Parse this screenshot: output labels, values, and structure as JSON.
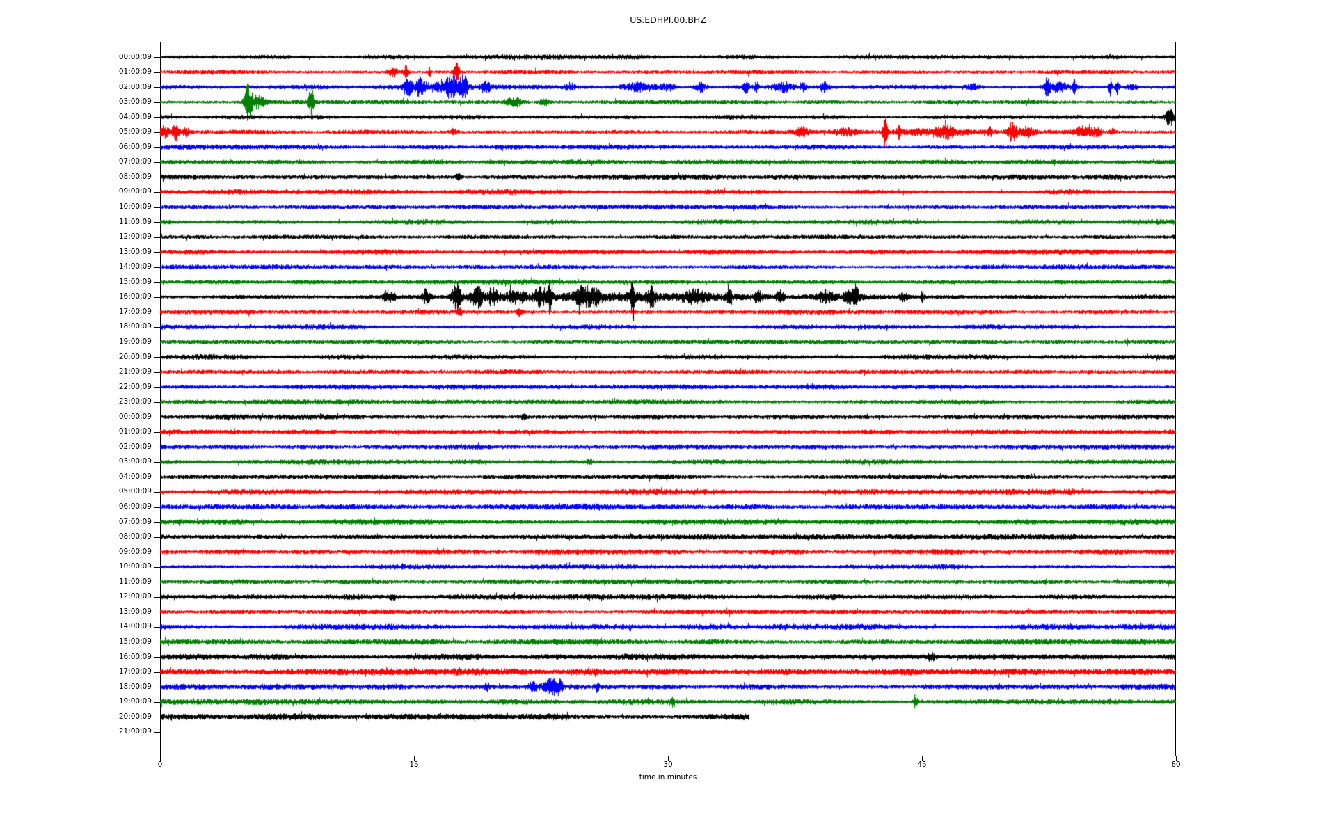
{
  "chart_data": {
    "type": "line",
    "subtype": "seismogram-helicorder-dayplot",
    "title": "US.EDHPI.00.BHZ",
    "xlabel": "time in minutes",
    "xlim": [
      0,
      60
    ],
    "x_ticks": [
      0,
      15,
      30,
      45,
      60
    ],
    "grid_minutes": [
      15,
      30,
      45
    ],
    "grid_on": true,
    "grid_color": "#9a9a9a",
    "color_cycle": [
      "#000000",
      "#ff0000",
      "#0000ff",
      "#008000"
    ],
    "row_unit": "one hour per row, amplitudes in relative pixels",
    "rows": [
      {
        "label": "00:00:09",
        "noise": 3.0,
        "events": []
      },
      {
        "label": "01:00:09",
        "noise": 2.8,
        "events": [
          [
            13.7,
            7,
            0.3
          ],
          [
            14.5,
            9,
            0.15
          ],
          [
            15.9,
            5,
            0.1
          ],
          [
            17.5,
            13,
            0.18
          ]
        ]
      },
      {
        "label": "02:00:09",
        "noise": 2.9,
        "events": [
          [
            14.6,
            15,
            0.2
          ],
          [
            15.3,
            11,
            0.3
          ],
          [
            16.5,
            5,
            1.2
          ],
          [
            17.2,
            13,
            0.35
          ],
          [
            17.9,
            15,
            0.25
          ],
          [
            19.2,
            9,
            0.25
          ],
          [
            24.2,
            5,
            0.25
          ],
          [
            28.3,
            6,
            1.0
          ],
          [
            30.0,
            5,
            0.4
          ],
          [
            31.9,
            7,
            0.3
          ],
          [
            34.6,
            8,
            0.15
          ],
          [
            35.2,
            6,
            0.12
          ],
          [
            36.8,
            7,
            0.6
          ],
          [
            38.0,
            6,
            0.15
          ],
          [
            39.2,
            7,
            0.25
          ],
          [
            48.0,
            4,
            0.4
          ],
          [
            52.4,
            13,
            0.15
          ],
          [
            53.0,
            6,
            0.7
          ],
          [
            54.0,
            11,
            0.12
          ],
          [
            56.1,
            13,
            0.1
          ],
          [
            56.5,
            12,
            0.1
          ],
          [
            57.4,
            5,
            0.3
          ]
        ]
      },
      {
        "label": "03:00:09",
        "noise": 2.9,
        "events": [
          [
            5.2,
            25,
            0.22
          ],
          [
            5.7,
            8,
            0.5
          ],
          [
            8.9,
            19,
            0.18
          ],
          [
            20.9,
            6,
            0.5
          ],
          [
            22.7,
            5,
            0.3
          ]
        ]
      },
      {
        "label": "04:00:09",
        "noise": 2.8,
        "events": [
          [
            59.6,
            13,
            0.25
          ]
        ]
      },
      {
        "label": "05:00:09",
        "noise": 2.9,
        "events": [
          [
            0.2,
            8,
            0.3
          ],
          [
            0.9,
            11,
            0.2
          ],
          [
            1.5,
            6,
            0.2
          ],
          [
            17.3,
            4,
            0.2
          ],
          [
            37.9,
            7,
            0.35
          ],
          [
            40.5,
            5,
            0.7
          ],
          [
            42.8,
            22,
            0.12
          ],
          [
            43.6,
            8,
            0.12
          ],
          [
            45.5,
            3,
            3.0
          ],
          [
            46.4,
            6,
            0.5
          ],
          [
            49.0,
            9,
            0.1
          ],
          [
            50.3,
            12,
            0.25
          ],
          [
            51.1,
            6,
            0.5
          ],
          [
            54.5,
            7,
            0.5
          ],
          [
            55.3,
            6,
            0.3
          ],
          [
            56.2,
            4,
            0.2
          ]
        ]
      },
      {
        "label": "06:00:09",
        "noise": 2.9,
        "events": []
      },
      {
        "label": "07:00:09",
        "noise": 3.0,
        "events": []
      },
      {
        "label": "08:00:09",
        "noise": 3.2,
        "events": [
          [
            17.6,
            5,
            0.15
          ]
        ]
      },
      {
        "label": "09:00:09",
        "noise": 3.3,
        "events": []
      },
      {
        "label": "10:00:09",
        "noise": 3.2,
        "events": []
      },
      {
        "label": "11:00:09",
        "noise": 3.2,
        "events": []
      },
      {
        "label": "12:00:09",
        "noise": 2.9,
        "events": []
      },
      {
        "label": "13:00:09",
        "noise": 3.0,
        "events": []
      },
      {
        "label": "14:00:09",
        "noise": 3.0,
        "events": []
      },
      {
        "label": "15:00:09",
        "noise": 3.1,
        "events": []
      },
      {
        "label": "16:00:09",
        "noise": 3.0,
        "events": [
          [
            27.5,
            3.5,
            9.0
          ],
          [
            13.5,
            10,
            0.3
          ],
          [
            15.7,
            11,
            0.25
          ],
          [
            17.5,
            20,
            0.25
          ],
          [
            18.7,
            14,
            0.35
          ],
          [
            19.6,
            10,
            0.35
          ],
          [
            21.0,
            7,
            0.7
          ],
          [
            22.5,
            11,
            0.4
          ],
          [
            23.0,
            18,
            0.13
          ],
          [
            24.9,
            11,
            0.5
          ],
          [
            25.6,
            9,
            0.35
          ],
          [
            27.9,
            36,
            0.1
          ],
          [
            29.0,
            13,
            0.25
          ],
          [
            31.5,
            7,
            0.7
          ],
          [
            33.6,
            20,
            0.13
          ],
          [
            35.3,
            11,
            0.18
          ],
          [
            36.6,
            9,
            0.2
          ],
          [
            39.3,
            7,
            0.45
          ],
          [
            40.8,
            8,
            0.5
          ],
          [
            41.1,
            12,
            0.13
          ],
          [
            43.9,
            5,
            0.25
          ],
          [
            45.0,
            8,
            0.1
          ]
        ]
      },
      {
        "label": "17:00:09",
        "noise": 3.0,
        "events": [
          [
            17.7,
            8,
            0.1
          ],
          [
            21.2,
            5,
            0.15
          ]
        ]
      },
      {
        "label": "18:00:09",
        "noise": 3.1,
        "events": []
      },
      {
        "label": "19:00:09",
        "noise": 3.0,
        "events": []
      },
      {
        "label": "20:00:09",
        "noise": 3.4,
        "events": []
      },
      {
        "label": "21:00:09",
        "noise": 3.0,
        "events": []
      },
      {
        "label": "22:00:09",
        "noise": 3.0,
        "events": []
      },
      {
        "label": "23:00:09",
        "noise": 3.0,
        "events": []
      },
      {
        "label": "00:00:09",
        "noise": 3.1,
        "events": [
          [
            21.5,
            7,
            0.12
          ]
        ]
      },
      {
        "label": "01:00:09",
        "noise": 3.0,
        "events": []
      },
      {
        "label": "02:00:09",
        "noise": 3.2,
        "events": []
      },
      {
        "label": "03:00:09",
        "noise": 3.3,
        "events": [
          [
            25.3,
            4,
            0.2
          ]
        ]
      },
      {
        "label": "04:00:09",
        "noise": 3.2,
        "events": []
      },
      {
        "label": "05:00:09",
        "noise": 3.3,
        "events": []
      },
      {
        "label": "06:00:09",
        "noise": 3.5,
        "events": []
      },
      {
        "label": "07:00:09",
        "noise": 3.3,
        "events": []
      },
      {
        "label": "08:00:09",
        "noise": 3.4,
        "events": []
      },
      {
        "label": "09:00:09",
        "noise": 3.3,
        "events": []
      },
      {
        "label": "10:00:09",
        "noise": 3.3,
        "events": []
      },
      {
        "label": "11:00:09",
        "noise": 3.4,
        "events": []
      },
      {
        "label": "12:00:09",
        "noise": 3.5,
        "events": [
          [
            13.7,
            4,
            0.2
          ]
        ]
      },
      {
        "label": "13:00:09",
        "noise": 3.3,
        "events": []
      },
      {
        "label": "14:00:09",
        "noise": 3.6,
        "events": []
      },
      {
        "label": "15:00:09",
        "noise": 3.5,
        "events": []
      },
      {
        "label": "16:00:09",
        "noise": 3.6,
        "events": [
          [
            45.5,
            6,
            0.2
          ]
        ]
      },
      {
        "label": "17:00:09",
        "noise": 4.2,
        "events": []
      },
      {
        "label": "18:00:09",
        "noise": 3.6,
        "events": [
          [
            19.3,
            6,
            0.12
          ],
          [
            22.0,
            5,
            0.3
          ],
          [
            23.1,
            11,
            0.4
          ],
          [
            23.6,
            8,
            0.15
          ],
          [
            25.8,
            5,
            0.12
          ]
        ]
      },
      {
        "label": "19:00:09",
        "noise": 3.6,
        "events": [
          [
            30.2,
            6,
            0.1
          ],
          [
            44.6,
            10,
            0.13
          ]
        ]
      },
      {
        "label": "20:00:09",
        "noise": 4.0,
        "end": 34.8,
        "events": []
      },
      {
        "label": "21:00:09",
        "noise": 0,
        "events": []
      }
    ]
  }
}
